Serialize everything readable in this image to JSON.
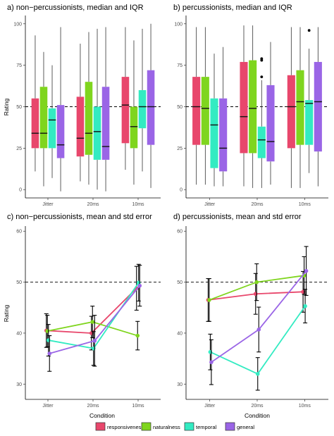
{
  "axis_labels": {
    "ylabel": "Rating",
    "xlabel": "Condition"
  },
  "legend": [
    "responsiveness",
    "naturalness",
    "temporal",
    "general"
  ],
  "colors": {
    "responsiveness": "#e8476c",
    "naturalness": "#7fd51e",
    "temporal": "#33ebc2",
    "general": "#9a65e6"
  },
  "chart_data": [
    {
      "id": "a",
      "type": "box",
      "title": "a) non−percussionists, median and IQR",
      "categories": [
        "Jitter",
        "20ms",
        "10ms"
      ],
      "ylim": [
        -5,
        105
      ],
      "yticks": [
        0,
        25,
        50,
        75,
        100
      ],
      "reference_line": 50,
      "boxes": {
        "responsiveness": [
          {
            "whislo": 11,
            "q1": 25,
            "med": 34,
            "q3": 55,
            "whishi": 93
          },
          {
            "whislo": 5,
            "q1": 20,
            "med": 31,
            "q3": 56,
            "whishi": 88
          },
          {
            "whislo": 12,
            "q1": 28,
            "med": 51,
            "q3": 68,
            "whishi": 98
          }
        ],
        "naturalness": [
          {
            "whislo": 2,
            "q1": 25,
            "med": 34,
            "q3": 62,
            "whishi": 83
          },
          {
            "whislo": 3,
            "q1": 21,
            "med": 34,
            "q3": 65,
            "whishi": 95
          },
          {
            "whislo": 3,
            "q1": 25,
            "med": 38,
            "q3": 50,
            "whishi": 90
          }
        ],
        "temporal": [
          {
            "whislo": 7,
            "q1": 25,
            "med": 42,
            "q3": 49,
            "whishi": 75
          },
          {
            "whislo": 0,
            "q1": 18,
            "med": 35,
            "q3": 50,
            "whishi": 97
          },
          {
            "whislo": 11,
            "q1": 37,
            "med": 50,
            "q3": 60,
            "whishi": 97
          }
        ],
        "general": [
          {
            "whislo": -1,
            "q1": 19,
            "med": 27,
            "q3": 51,
            "whishi": 98
          },
          {
            "whislo": -1,
            "q1": 18,
            "med": 26,
            "q3": 62,
            "whishi": 98
          },
          {
            "whislo": 1,
            "q1": 27,
            "med": 50,
            "q3": 72,
            "whishi": 100
          }
        ]
      }
    },
    {
      "id": "b",
      "type": "box",
      "title": "b) percussionists, median and IQR",
      "categories": [
        "Jitter",
        "20ms",
        "10ms"
      ],
      "ylim": [
        -5,
        105
      ],
      "yticks": [
        0,
        25,
        50,
        75,
        100
      ],
      "reference_line": 50,
      "boxes": {
        "responsiveness": [
          {
            "whislo": 3,
            "q1": 27,
            "med": 50,
            "q3": 68,
            "whishi": 98
          },
          {
            "whislo": 2,
            "q1": 22,
            "med": 44,
            "q3": 77,
            "whishi": 99
          },
          {
            "whislo": 1,
            "q1": 25,
            "med": 50,
            "q3": 69,
            "whishi": 98
          }
        ],
        "naturalness": [
          {
            "whislo": 3,
            "q1": 27,
            "med": 49,
            "q3": 68,
            "whishi": 98
          },
          {
            "whislo": 1,
            "q1": 22,
            "med": 49,
            "q3": 78,
            "whishi": 99
          },
          {
            "whislo": 1,
            "q1": 27,
            "med": 53,
            "q3": 72,
            "whishi": 98
          }
        ],
        "temporal": [
          {
            "whislo": 2,
            "q1": 13,
            "med": 39,
            "q3": 55,
            "whishi": 82
          },
          {
            "whislo": 1,
            "q1": 19,
            "med": 30,
            "q3": 38,
            "whishi": 66,
            "outliers": [
              78,
              79,
              68
            ]
          },
          {
            "whislo": 10,
            "q1": 27,
            "med": 52,
            "q3": 54,
            "whishi": 85,
            "outliers": [
              96
            ]
          }
        ],
        "general": [
          {
            "whislo": 2,
            "q1": 11,
            "med": 25,
            "q3": 55,
            "whishi": 86
          },
          {
            "whislo": 3,
            "q1": 17,
            "med": 29,
            "q3": 63,
            "whishi": 89
          },
          {
            "whislo": 2,
            "q1": 23,
            "med": 53,
            "q3": 77,
            "whishi": 98
          }
        ]
      }
    },
    {
      "id": "c",
      "type": "line",
      "title": "c) non−percussionists, mean and std error",
      "categories": [
        "Jitter",
        "20ms",
        "10ms"
      ],
      "ylim": [
        27,
        61
      ],
      "yticks": [
        30,
        40,
        50,
        60
      ],
      "reference_line": 50,
      "series": [
        {
          "name": "responsiveness",
          "values": [
            40.5,
            40.0,
            48.8
          ],
          "err": [
            3.3,
            3.3,
            4.3
          ]
        },
        {
          "name": "naturalness",
          "values": [
            40.4,
            42.2,
            39.5
          ],
          "err": [
            3.1,
            3.1,
            2.8
          ]
        },
        {
          "name": "temporal",
          "values": [
            38.6,
            37.0,
            49.9
          ],
          "err": [
            3.1,
            3.3,
            3.6
          ]
        },
        {
          "name": "general",
          "values": [
            36.0,
            38.5,
            49.3
          ],
          "err": [
            3.5,
            5.0,
            4.0
          ]
        }
      ]
    },
    {
      "id": "d",
      "type": "line",
      "title": "d) percussionists, mean and std error",
      "categories": [
        "Jitter",
        "20ms",
        "10ms"
      ],
      "ylim": [
        27,
        61
      ],
      "yticks": [
        30,
        40,
        50,
        60
      ],
      "reference_line": 50,
      "series": [
        {
          "name": "responsiveness",
          "values": [
            46.5,
            47.7,
            48.1
          ],
          "err": [
            4.2,
            4.0,
            4.0
          ]
        },
        {
          "name": "naturalness",
          "values": [
            46.5,
            50.0,
            51.3
          ],
          "err": [
            4.2,
            3.6,
            3.7
          ]
        },
        {
          "name": "temporal",
          "values": [
            36.3,
            32.0,
            45.3
          ],
          "err": [
            3.5,
            3.2,
            3.3
          ]
        },
        {
          "name": "general",
          "values": [
            34.3,
            40.7,
            52.2
          ],
          "err": [
            4.4,
            4.4,
            4.8
          ]
        }
      ]
    }
  ]
}
